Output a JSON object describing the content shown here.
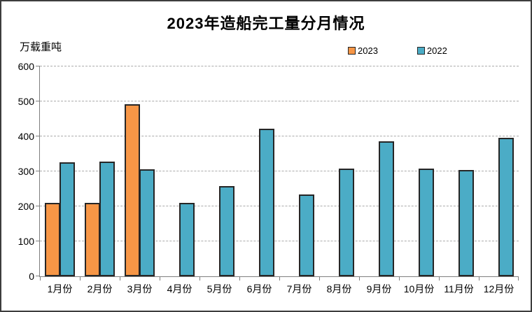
{
  "chart_data": {
    "type": "bar",
    "title": "2023年造船完工量分月情况",
    "unit_label": "万载重吨",
    "categories": [
      "1月份",
      "2月份",
      "3月份",
      "4月份",
      "5月份",
      "6月份",
      "7月份",
      "8月份",
      "9月份",
      "10月份",
      "11月份",
      "12月份"
    ],
    "series": [
      {
        "name": "2023",
        "color": "#F79646",
        "values": [
          210,
          210,
          492,
          null,
          null,
          null,
          null,
          null,
          null,
          null,
          null,
          null
        ]
      },
      {
        "name": "2022",
        "color": "#4BACC6",
        "values": [
          325,
          327,
          306,
          209,
          257,
          421,
          234,
          308,
          385,
          308,
          303,
          395
        ]
      }
    ],
    "ylim": [
      0,
      600
    ],
    "ytick_step": 100,
    "yticks": [
      "0",
      "100",
      "200",
      "300",
      "400",
      "500",
      "600"
    ],
    "grid": "horizontal-dashed",
    "legend_position": "top-right",
    "bar_outline_color": "#262626",
    "axis_color": "#7f7f7f",
    "background": "#ffffff"
  }
}
